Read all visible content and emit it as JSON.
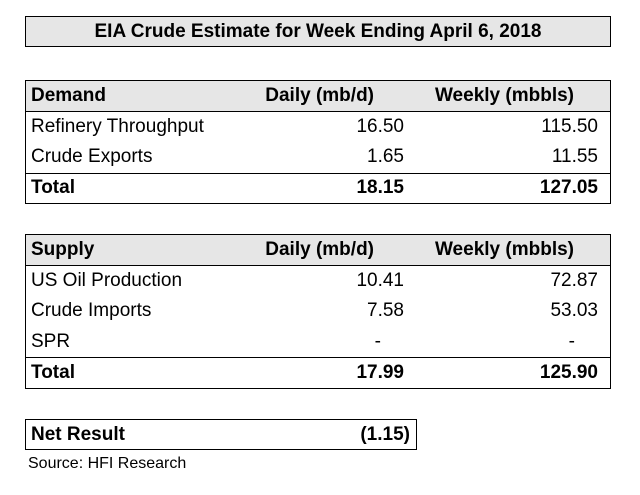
{
  "title": "EIA Crude Estimate for Week Ending April 6, 2018",
  "demand": {
    "header": {
      "label": "Demand",
      "daily": "Daily (mb/d)",
      "weekly": "Weekly (mbbls)"
    },
    "rows": [
      {
        "label": "Refinery Throughput",
        "daily": "16.50",
        "weekly": "115.50"
      },
      {
        "label": "Crude Exports",
        "daily": "1.65",
        "weekly": "11.55"
      }
    ],
    "total": {
      "label": "Total",
      "daily": "18.15",
      "weekly": "127.05"
    }
  },
  "supply": {
    "header": {
      "label": "Supply",
      "daily": "Daily (mb/d)",
      "weekly": "Weekly (mbbls)"
    },
    "rows": [
      {
        "label": "US Oil Production",
        "daily": "10.41",
        "weekly": "72.87"
      },
      {
        "label": "Crude Imports",
        "daily": "7.58",
        "weekly": "53.03"
      },
      {
        "label": "SPR",
        "daily": "-",
        "weekly": "-"
      }
    ],
    "total": {
      "label": "Total",
      "daily": "17.99",
      "weekly": "125.90"
    }
  },
  "net_result": {
    "label": "Net Result",
    "value": "(1.15)"
  },
  "source": "Source: HFI Research",
  "colors": {
    "header_fill": "#e6e6e6",
    "border": "#000000"
  }
}
